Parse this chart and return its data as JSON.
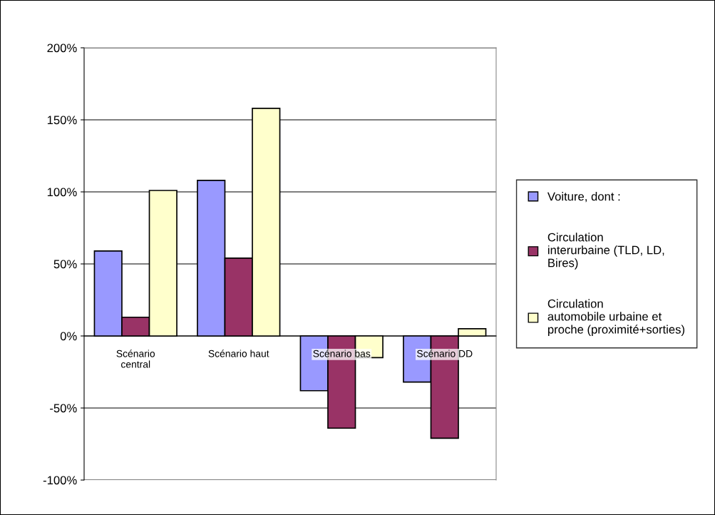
{
  "chart_data": {
    "type": "bar",
    "categories": [
      "Scénario\ncentral",
      "Scénario haut",
      "Scénario bas",
      "Scénario DD"
    ],
    "series": [
      {
        "name": "Voiture, dont :",
        "color": "#9999ff",
        "values": [
          59,
          108,
          -38,
          -32
        ]
      },
      {
        "name": "Circulation\ninterurbaine (TLD, LD,\nBires)",
        "color": "#993366",
        "values": [
          13,
          54,
          -64,
          -71
        ]
      },
      {
        "name": "Circulation\nautomobile urbaine et\nproche (proximité+sorties)",
        "color": "#ffffcc",
        "values": [
          101,
          158,
          -15,
          5
        ]
      }
    ],
    "ylim": [
      -100,
      200
    ],
    "yticks": [
      {
        "value": -100,
        "label": "-100%"
      },
      {
        "value": -50,
        "label": "-50%"
      },
      {
        "value": 0,
        "label": "0%"
      },
      {
        "value": 50,
        "label": "50%"
      },
      {
        "value": 100,
        "label": "100%"
      },
      {
        "value": 150,
        "label": "150%"
      },
      {
        "value": 200,
        "label": "200%"
      }
    ],
    "grid": "y",
    "legend": "right"
  }
}
